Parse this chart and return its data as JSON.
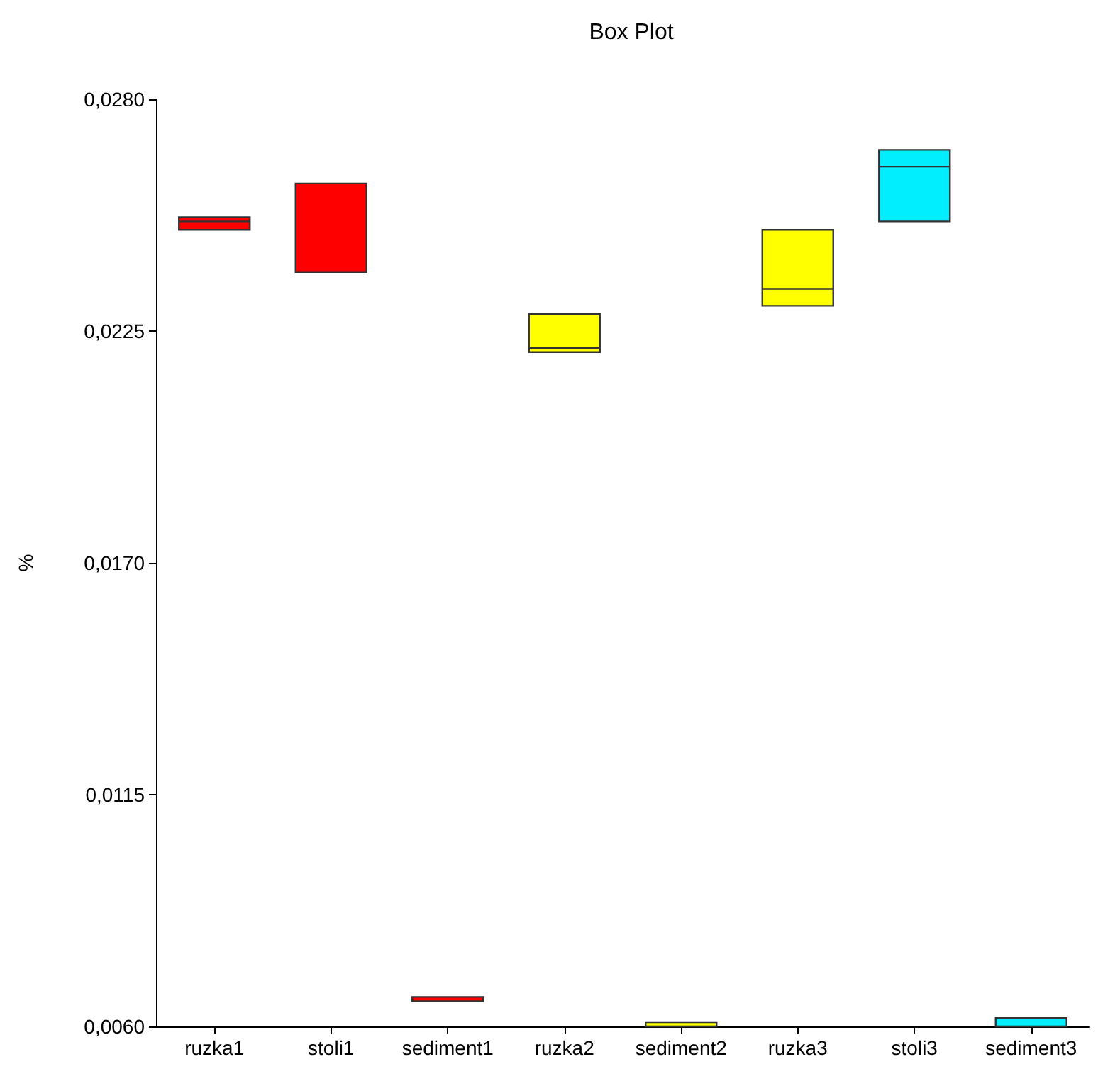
{
  "chart_data": {
    "type": "box",
    "title": "Box Plot",
    "ylabel": "%",
    "categories": [
      "ruzka1",
      "stoli1",
      "sediment1",
      "ruzka2",
      "sediment2",
      "ruzka3",
      "stoli3",
      "sediment3"
    ],
    "boxes": [
      {
        "low": 0.0249,
        "q1": 0.0249,
        "median": 0.0251,
        "q3": 0.0252,
        "high": 0.0252
      },
      {
        "low": 0.0239,
        "q1": 0.0239,
        "median": 0.026,
        "q3": 0.026,
        "high": 0.026
      },
      {
        "low": 0.0066,
        "q1": 0.0066,
        "median": 0.0067,
        "q3": 0.0067,
        "high": 0.0067
      },
      {
        "low": 0.022,
        "q1": 0.022,
        "median": 0.0221,
        "q3": 0.0229,
        "high": 0.0229
      },
      {
        "low": 0.006,
        "q1": 0.006,
        "median": 0.006,
        "q3": 0.0061,
        "high": 0.0061
      },
      {
        "low": 0.0231,
        "q1": 0.0231,
        "median": 0.0235,
        "q3": 0.0249,
        "high": 0.0249
      },
      {
        "low": 0.0251,
        "q1": 0.0251,
        "median": 0.0264,
        "q3": 0.0268,
        "high": 0.0268
      },
      {
        "low": 0.006,
        "q1": 0.006,
        "median": 0.006,
        "q3": 0.0062,
        "high": 0.0062
      }
    ],
    "colors": [
      "#ff0000",
      "#ff0000",
      "#ff0000",
      "#ffff00",
      "#ffff00",
      "#ffff00",
      "#00eeff",
      "#00eeff"
    ],
    "ylim": [
      0.006,
      0.028
    ],
    "yticks": [
      {
        "value": 0.006,
        "label": "0,0060"
      },
      {
        "value": 0.0115,
        "label": "0,0115"
      },
      {
        "value": 0.017,
        "label": "0,0170"
      },
      {
        "value": 0.0225,
        "label": "0,0225"
      },
      {
        "value": 0.028,
        "label": "0,0280"
      }
    ],
    "grid": false
  }
}
